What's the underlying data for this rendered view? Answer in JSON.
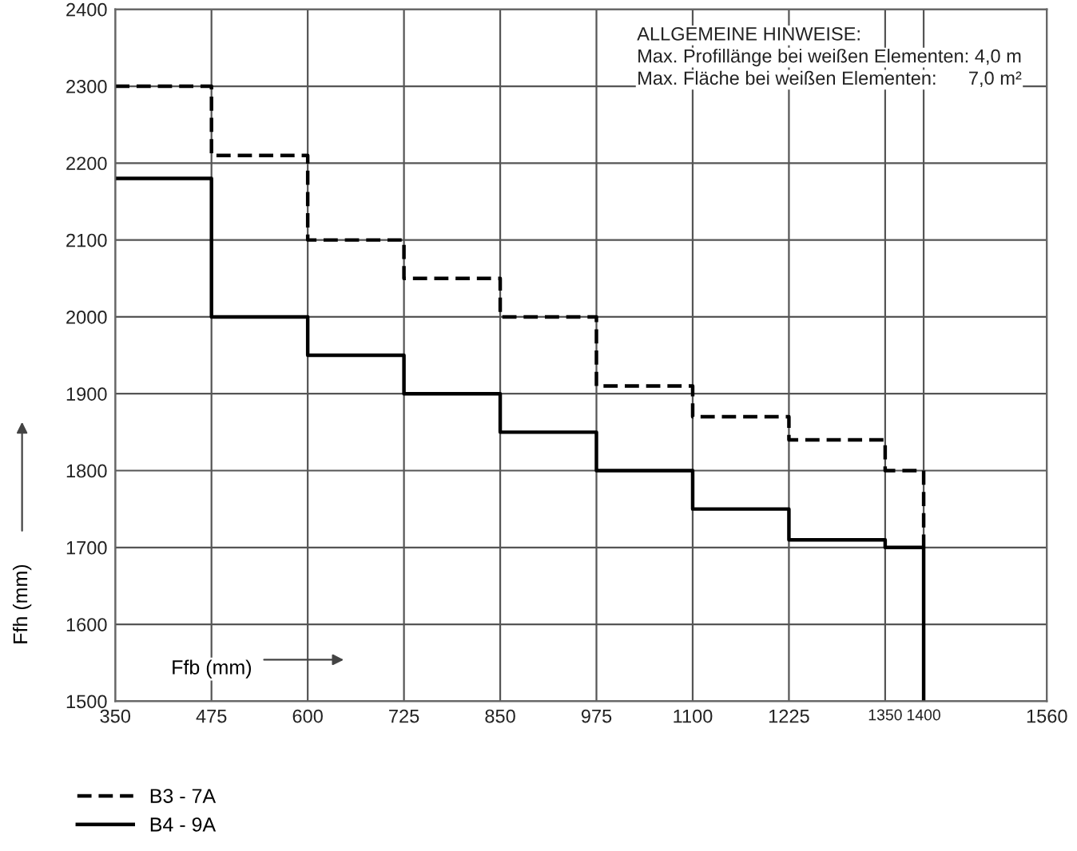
{
  "chart_data": {
    "type": "step",
    "xlabel": "Ffb (mm)",
    "ylabel": "Ffh (mm)",
    "x": [
      350,
      475,
      600,
      725,
      850,
      975,
      1100,
      1225,
      1350,
      1400
    ],
    "series": [
      {
        "name": "B3 - 7A",
        "color": "#000000",
        "line_style": "dashed",
        "values": [
          2300,
          2210,
          2100,
          2050,
          2000,
          1910,
          1870,
          1840,
          1800,
          1700
        ]
      },
      {
        "name": "B4 - 9A",
        "color": "#000000",
        "line_style": "solid",
        "values": [
          2180,
          2000,
          1950,
          1900,
          1850,
          1800,
          1750,
          1710,
          1700,
          1500
        ]
      }
    ],
    "xlim": [
      350,
      1560
    ],
    "ylim": [
      1500,
      2400
    ],
    "xticks": [
      350,
      475,
      600,
      725,
      850,
      975,
      1100,
      1225,
      1350,
      1400,
      1560
    ],
    "yticks": [
      1500,
      1600,
      1700,
      1800,
      1900,
      2000,
      2100,
      2200,
      2300,
      2400
    ],
    "grid": true,
    "legend": "bottom left",
    "marker": "none",
    "annotations": [
      "ALLGEMEINE HINWEISE:",
      "Max. Profillänge bei weißen Elementen: 4,0 m",
      "Max. Fläche bei weißen Elementen:      7,0 m²"
    ]
  }
}
